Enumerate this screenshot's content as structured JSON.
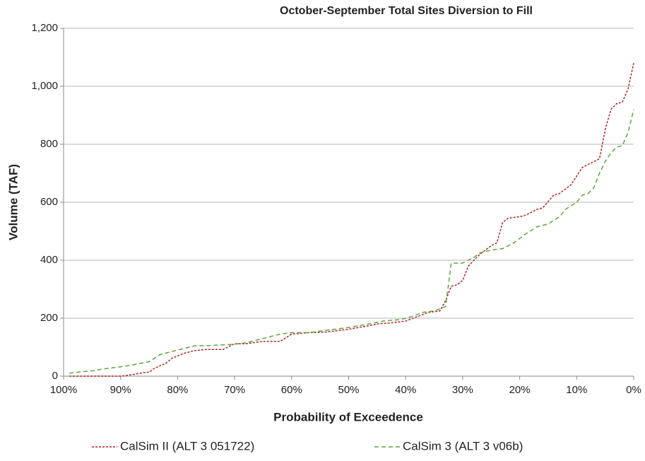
{
  "chart_data": {
    "type": "line",
    "title": "October-September Total Sites Diversion to Fill",
    "x_label": "Probability of Exceedence",
    "y_label": "Volume (TAF)",
    "xlim": [
      100,
      0
    ],
    "xticks": [
      {
        "value": 100,
        "label": "100%"
      },
      {
        "value": 90,
        "label": "90%"
      },
      {
        "value": 80,
        "label": "80%"
      },
      {
        "value": 70,
        "label": "70%"
      },
      {
        "value": 60,
        "label": "60%"
      },
      {
        "value": 50,
        "label": "50%"
      },
      {
        "value": 40,
        "label": "40%"
      },
      {
        "value": 30,
        "label": "30%"
      },
      {
        "value": 20,
        "label": "20%"
      },
      {
        "value": 10,
        "label": "10%"
      },
      {
        "value": 0,
        "label": "0%"
      }
    ],
    "ylim": [
      0,
      1200
    ],
    "yticks": [
      0,
      200,
      400,
      600,
      800,
      {
        "value": 1000,
        "label": "1,000"
      },
      {
        "value": 1200,
        "label": "1,200"
      }
    ],
    "grid": true,
    "legend": "bottom",
    "series": [
      {
        "name": "CalSim II (ALT 3 051722)",
        "color": "#b22222",
        "dash": "3,2",
        "x": [
          99,
          95,
          90,
          88,
          86,
          85,
          84,
          82,
          81,
          79,
          77,
          75,
          72,
          70,
          68,
          65,
          62,
          60,
          57,
          54,
          50,
          47,
          45,
          42,
          40,
          38,
          36,
          34,
          33,
          32,
          31,
          30,
          29,
          28,
          27,
          25,
          24,
          23,
          22,
          20,
          19,
          17,
          16,
          14,
          13,
          11,
          10,
          9,
          8,
          7,
          6,
          5,
          4,
          3,
          2,
          1,
          0
        ],
        "values": [
          0,
          0,
          0,
          5,
          12,
          14,
          28,
          45,
          62,
          78,
          88,
          92,
          92,
          112,
          112,
          120,
          120,
          145,
          150,
          152,
          162,
          172,
          180,
          185,
          190,
          205,
          220,
          225,
          260,
          310,
          315,
          330,
          380,
          400,
          420,
          450,
          460,
          530,
          545,
          550,
          555,
          575,
          580,
          625,
          630,
          660,
          690,
          720,
          730,
          740,
          750,
          850,
          920,
          940,
          945,
          990,
          1080
        ]
      },
      {
        "name": "CalSim 3 (ALT 3 v06b)",
        "color": "#5aa63c",
        "dash": "6,4",
        "x": [
          99,
          97,
          95,
          93,
          91,
          89,
          87,
          85,
          83,
          81,
          79,
          77,
          75,
          72,
          70,
          68,
          66,
          64,
          62,
          60,
          57,
          54,
          50,
          47,
          44,
          41,
          39,
          37,
          35,
          33,
          32,
          30,
          28,
          27,
          25,
          23,
          21,
          19,
          17,
          15,
          13,
          12,
          10,
          9,
          8,
          7,
          6,
          5,
          4,
          3,
          2,
          1,
          0
        ],
        "values": [
          10,
          15,
          18,
          25,
          30,
          35,
          42,
          50,
          75,
          85,
          95,
          105,
          105,
          108,
          110,
          115,
          125,
          135,
          145,
          150,
          150,
          158,
          168,
          178,
          190,
          195,
          205,
          220,
          225,
          240,
          390,
          390,
          410,
          425,
          435,
          440,
          460,
          490,
          515,
          525,
          550,
          575,
          600,
          625,
          630,
          650,
          700,
          740,
          770,
          790,
          795,
          840,
          920
        ]
      }
    ]
  }
}
